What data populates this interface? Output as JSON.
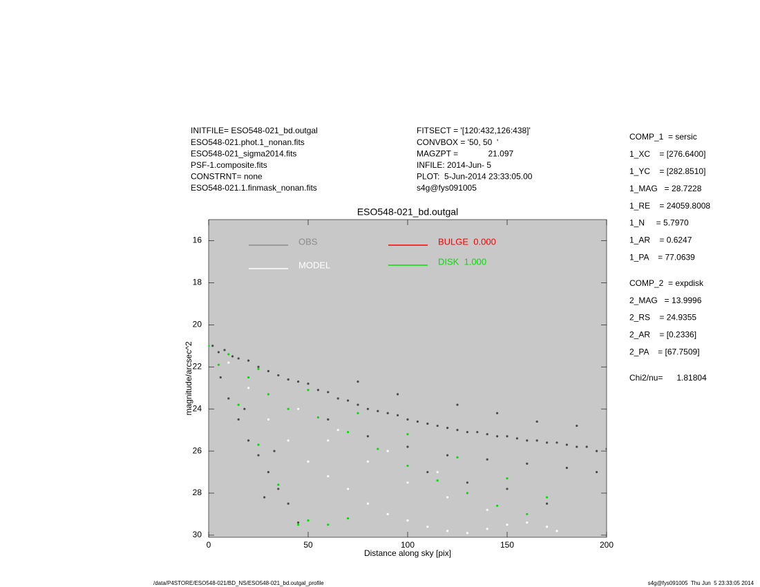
{
  "chart_data": {
    "type": "scatter",
    "title": "ESO548-021_bd.outgal",
    "x_label": "Distance along sky [pix]",
    "y_label": "magnitude/arcsec^2",
    "xlim": [
      0,
      200
    ],
    "xticks": [
      0,
      50,
      100,
      150,
      200
    ],
    "ylim": [
      30.1,
      15.0
    ],
    "yticks": [
      16,
      18,
      20,
      22,
      24,
      26,
      28,
      30
    ],
    "background": "#c8c8c8",
    "header_left": [
      "INITFILE= ESO548-021_bd.outgal",
      "ESO548-021.phot.1_nonan.fits",
      "ESO548-021_sigma2014.fits",
      "PSF-1.composite.fits",
      "CONSTRNT= none",
      "ESO548-021.1.finmask_nonan.fits"
    ],
    "header_middle": [
      "FITSECT = '[120:432,126:438]'",
      "CONVBOX = '50, 50  '",
      "MAGZPT =             21.097",
      "INFILE: 2014-Jun- 5",
      "PLOT:  5-Jun-2014 23:33:05.00",
      "s4g@fys091005"
    ],
    "params": [
      [
        "COMP_1  = sersic",
        "1_XC    = [276.6400]",
        "1_YC    = [282.8510]",
        "1_MAG   = 28.7228",
        "1_RE    = 24059.8008",
        "1_N     = 5.7970",
        "1_AR    = 0.6247",
        "1_PA    = 77.0639"
      ],
      [
        "COMP_2  = expdisk",
        "2_MAG   = 13.9996",
        "2_RS    = 24.9355",
        "2_AR    = [0.2336]",
        "2_PA    = [67.7509]"
      ],
      [
        "Chi2/nu=      1.81804"
      ]
    ],
    "footer_left": "/data/P4STORE/ESO548-021/BD_NS/ESO548-021_bd.outgal_profile",
    "footer_right": "s4g@fys091005  Thu Jun  5 23:33:05 2014",
    "series": [
      {
        "name": "OBS",
        "color": "#4a4a4a",
        "legend_color": "#8c8c8c",
        "x": [
          2,
          5,
          8,
          12,
          15,
          20,
          25,
          30,
          35,
          40,
          45,
          50,
          55,
          60,
          65,
          70,
          75,
          80,
          85,
          90,
          95,
          100,
          105,
          110,
          115,
          120,
          125,
          130,
          135,
          140,
          145,
          150,
          155,
          160,
          165,
          170,
          175,
          180,
          185,
          190,
          195,
          200,
          60,
          80,
          100,
          120,
          140,
          160,
          180,
          195,
          110,
          130,
          150,
          170,
          6,
          10,
          15,
          20,
          25,
          30,
          35,
          40,
          45,
          28,
          18,
          33,
          145,
          165,
          185,
          125,
          75,
          95
        ],
        "values": [
          21.0,
          21.3,
          21.2,
          21.5,
          21.6,
          21.7,
          22.0,
          22.2,
          22.4,
          22.6,
          22.7,
          22.8,
          23.1,
          23.2,
          23.5,
          23.6,
          23.8,
          24.0,
          24.1,
          24.2,
          24.3,
          24.5,
          24.6,
          24.7,
          24.8,
          24.9,
          25.0,
          25.1,
          25.1,
          25.2,
          25.3,
          25.3,
          25.4,
          25.5,
          25.5,
          25.6,
          25.6,
          25.7,
          25.8,
          25.8,
          26.0,
          25.9,
          24.5,
          25.3,
          25.8,
          26.2,
          26.4,
          26.6,
          26.8,
          27.0,
          27.0,
          27.5,
          27.8,
          28.5,
          22.5,
          23.5,
          24.5,
          25.5,
          26.2,
          27.0,
          27.8,
          28.5,
          29.4,
          28.2,
          24.0,
          26.0,
          24.2,
          24.6,
          24.8,
          23.8,
          22.7,
          23.3
        ]
      },
      {
        "name": "MODEL",
        "color": "#ffffff",
        "x": [
          10,
          20,
          30,
          40,
          50,
          60,
          70,
          80,
          90,
          100,
          110,
          120,
          130,
          140,
          150,
          160,
          170,
          175,
          60,
          80,
          100,
          120,
          140,
          160,
          45,
          65,
          90,
          115
        ],
        "values": [
          21.8,
          23.0,
          24.5,
          25.5,
          26.5,
          27.2,
          27.8,
          28.5,
          29.0,
          29.3,
          29.6,
          29.8,
          29.9,
          29.7,
          29.5,
          29.4,
          29.6,
          29.8,
          25.5,
          26.5,
          27.5,
          28.2,
          28.8,
          29.0,
          24.0,
          25.0,
          26.0,
          27.0
        ]
      },
      {
        "name": "BULGE  0.000",
        "color": "#ff0000",
        "x": [],
        "values": []
      },
      {
        "name": "DISK  1.000",
        "color": "#00e000",
        "x": [
          0,
          10,
          25,
          50,
          75,
          100,
          125,
          150,
          170,
          5,
          15,
          25,
          35,
          45,
          20,
          30,
          40,
          55,
          70,
          85,
          100,
          115,
          130,
          145,
          160,
          50,
          60,
          70
        ],
        "values": [
          21.0,
          21.4,
          22.1,
          23.1,
          24.2,
          25.2,
          26.3,
          27.3,
          28.2,
          21.9,
          23.8,
          25.7,
          27.6,
          29.5,
          22.5,
          23.3,
          24.0,
          24.4,
          25.1,
          25.9,
          26.7,
          27.4,
          28.0,
          28.6,
          29.0,
          29.3,
          29.5,
          29.2
        ]
      }
    ]
  }
}
